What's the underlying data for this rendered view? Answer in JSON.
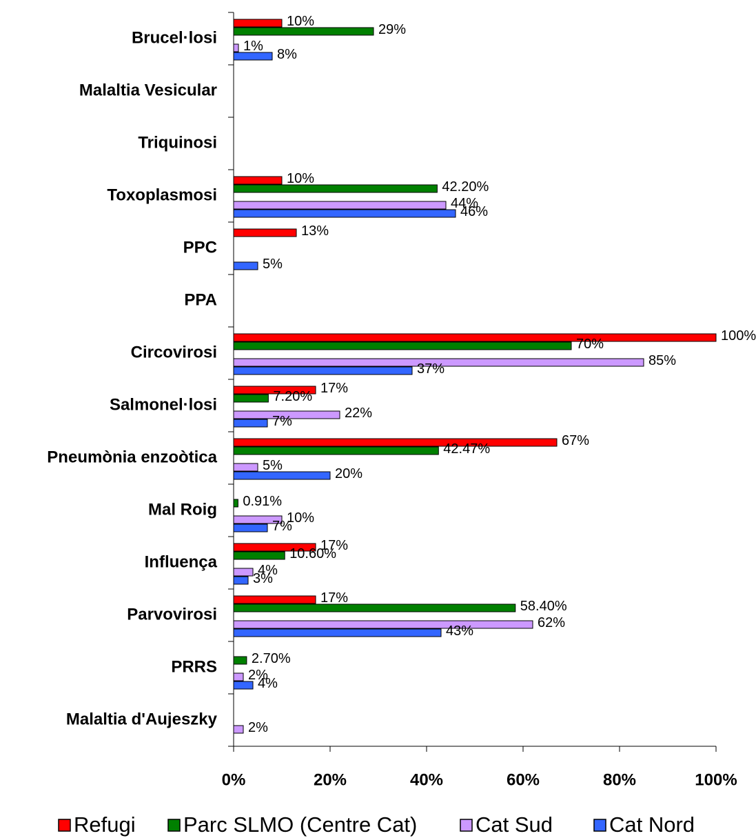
{
  "chart_data": {
    "type": "hbar",
    "categories": [
      "Brucel·losi",
      "Malaltia Vesicular",
      "Triquinosi",
      "Toxoplasmosi",
      "PPC",
      "PPA",
      "Circovirosi",
      "Salmonel·losi",
      "Pneumònia enzoòtica",
      "Mal Roig",
      "Influença",
      "Parvovirosi",
      "PRRS",
      "Malaltia d'Aujeszky"
    ],
    "series": [
      {
        "name": "Refugi",
        "color": "#ff0000",
        "values": [
          10,
          null,
          null,
          10,
          13,
          null,
          100,
          17,
          67,
          null,
          17,
          17,
          null,
          null
        ],
        "value_labels": [
          "10%",
          null,
          null,
          "10%",
          "13%",
          null,
          "100%",
          "17%",
          "67%",
          null,
          "17%",
          "17%",
          null,
          null
        ]
      },
      {
        "name": "Parc SLMO (Centre Cat)",
        "color": "#008000",
        "values": [
          29,
          null,
          null,
          42.2,
          null,
          null,
          70,
          7.2,
          42.47,
          0.91,
          10.6,
          58.4,
          2.7,
          null
        ],
        "value_labels": [
          "29%",
          null,
          null,
          "42.20%",
          null,
          null,
          "70%",
          "7.20%",
          "42.47%",
          "0.91%",
          "10.60%",
          "58.40%",
          "2.70%",
          null
        ]
      },
      {
        "name": "Cat Sud",
        "color": "#cc99ff",
        "values": [
          1,
          null,
          null,
          44,
          null,
          null,
          85,
          22,
          5,
          10,
          4,
          62,
          2,
          2
        ],
        "value_labels": [
          "1%",
          null,
          null,
          "44%",
          null,
          null,
          "85%",
          "22%",
          "5%",
          "10%",
          "4%",
          "62%",
          "2%",
          "2%"
        ]
      },
      {
        "name": "Cat Nord",
        "color": "#3366ff",
        "values": [
          8,
          null,
          null,
          46,
          5,
          null,
          37,
          7,
          20,
          7,
          3,
          43,
          4,
          null
        ],
        "value_labels": [
          "8%",
          null,
          null,
          "46%",
          "5%",
          null,
          "37%",
          "7%",
          "20%",
          "7%",
          "3%",
          "43%",
          "4%",
          null
        ]
      }
    ],
    "xlim": [
      0,
      100
    ],
    "xticks": [
      {
        "value": 0,
        "label": "0%"
      },
      {
        "value": 20,
        "label": "20%"
      },
      {
        "value": 40,
        "label": "40%"
      },
      {
        "value": 60,
        "label": "60%"
      },
      {
        "value": 80,
        "label": "80%"
      },
      {
        "value": 100,
        "label": "100%"
      }
    ]
  }
}
